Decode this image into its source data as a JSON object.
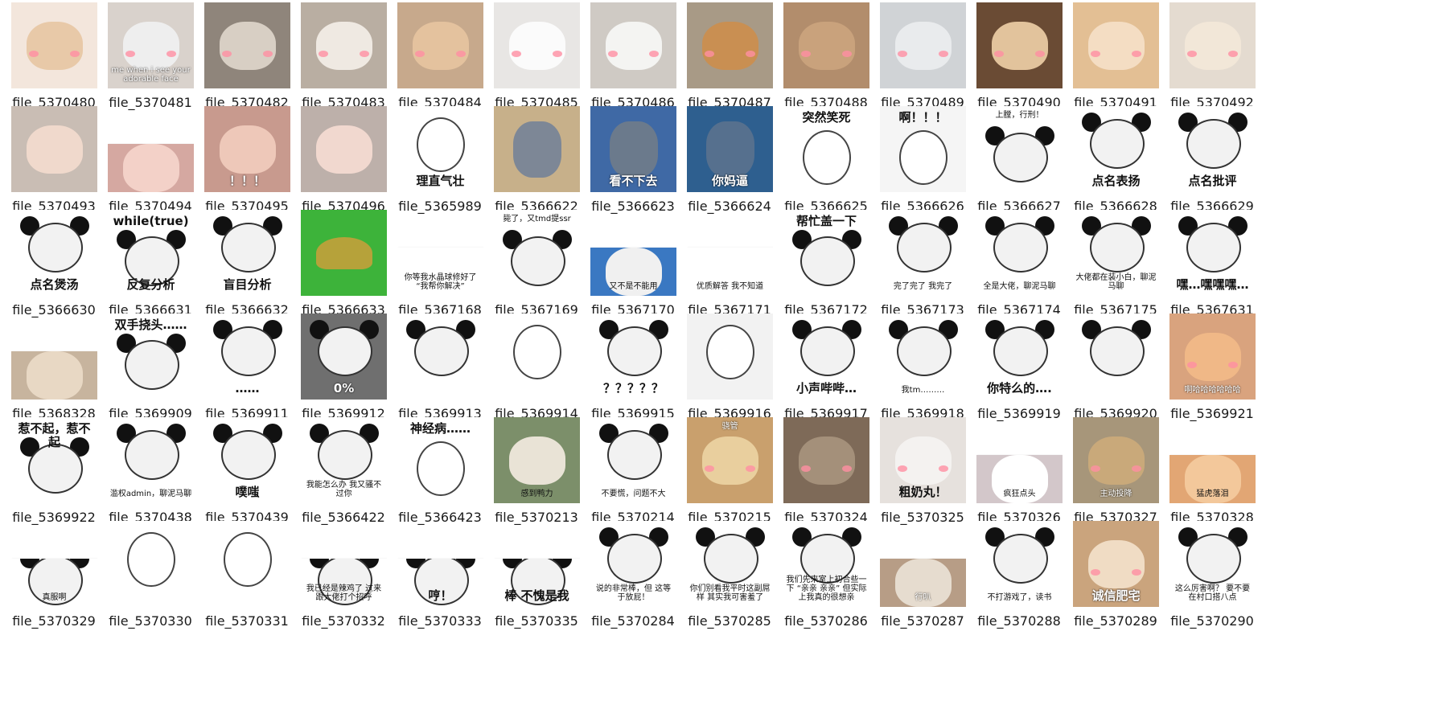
{
  "files": [
    {
      "name": "file_5370480",
      "kind": "cat",
      "bg": "#f3e6dc",
      "fg": "#e8c9a8",
      "caption": ""
    },
    {
      "name": "file_5370481",
      "kind": "cat",
      "bg": "#d9d2cc",
      "fg": "#eeeeee",
      "caption": "me when i see your adorable face",
      "capStyle": "light-small"
    },
    {
      "name": "file_5370482",
      "kind": "cat",
      "bg": "#8f857b",
      "fg": "#d8cfc4",
      "caption": ""
    },
    {
      "name": "file_5370483",
      "kind": "cat",
      "bg": "#b9aea2",
      "fg": "#efe9e2",
      "caption": ""
    },
    {
      "name": "file_5370484",
      "kind": "cat",
      "bg": "#c7a98c",
      "fg": "#e4c29e",
      "caption": ""
    },
    {
      "name": "file_5370485",
      "kind": "cat",
      "bg": "#e8e6e4",
      "fg": "#fbfbfb",
      "caption": ""
    },
    {
      "name": "file_5370486",
      "kind": "cat",
      "bg": "#cfcac4",
      "fg": "#f4f4f2",
      "caption": ""
    },
    {
      "name": "file_5370487",
      "kind": "cat",
      "bg": "#a89a86",
      "fg": "#c98f52",
      "caption": ""
    },
    {
      "name": "file_5370488",
      "kind": "cat",
      "bg": "#b28d6c",
      "fg": "#c9a27c",
      "caption": ""
    },
    {
      "name": "file_5370489",
      "kind": "cat",
      "bg": "#d0d3d6",
      "fg": "#e9ebed",
      "caption": ""
    },
    {
      "name": "file_5370490",
      "kind": "cat",
      "bg": "#6a4b34",
      "fg": "#e2c39c",
      "caption": ""
    },
    {
      "name": "file_5370491",
      "kind": "cat",
      "bg": "#e3bf94",
      "fg": "#f4ddc3",
      "caption": ""
    },
    {
      "name": "file_5370492",
      "kind": "cat",
      "bg": "#e4dbd0",
      "fg": "#f2e7d8",
      "caption": ""
    },
    {
      "name": "file_5370493",
      "kind": "photo",
      "bg": "#c9bdb4",
      "fg": "#f0d9cc",
      "caption": ""
    },
    {
      "name": "file_5370494",
      "kind": "photo",
      "bg": "#d5a8a1",
      "fg": "#f3d1c8",
      "caption": "",
      "short": true
    },
    {
      "name": "file_5370495",
      "kind": "photo",
      "bg": "#c89a8e",
      "fg": "#eec8b9",
      "caption": "！！！",
      "capStyle": "light"
    },
    {
      "name": "file_5370496",
      "kind": "photo",
      "bg": "#bdb0aa",
      "fg": "#f1d8cf",
      "caption": ""
    },
    {
      "name": "file_5365989",
      "kind": "doodle",
      "bg": "#ffffff",
      "fg": "#ffffff",
      "caption": "理直气壮"
    },
    {
      "name": "file_5366622",
      "kind": "cartoon",
      "bg": "#c7b08a",
      "fg": "#7d8796",
      "caption": ""
    },
    {
      "name": "file_5366623",
      "kind": "cartoon",
      "bg": "#3f69a5",
      "fg": "#6b7a8c",
      "caption": "看不下去",
      "capStyle": "light"
    },
    {
      "name": "file_5366624",
      "kind": "cartoon",
      "bg": "#2e5f8f",
      "fg": "#56708e",
      "caption": "你妈逼",
      "capStyle": "light"
    },
    {
      "name": "file_5366625",
      "kind": "doodle",
      "bg": "#ffffff",
      "fg": "#ffffff",
      "caption": "突然笑死",
      "capTop": true
    },
    {
      "name": "file_5366626",
      "kind": "doodle",
      "bg": "#f5f5f5",
      "fg": "#ffffff",
      "caption": "啊！！！",
      "capTop": true
    },
    {
      "name": "file_5366627",
      "kind": "panda",
      "bg": "#ffffff",
      "fg": "#f2f2f2",
      "caption": "上膛，行刑！",
      "capTop": true,
      "capStyle": "small"
    },
    {
      "name": "file_5366628",
      "kind": "panda",
      "bg": "#ffffff",
      "fg": "#f2f2f2",
      "caption": "点名表扬"
    },
    {
      "name": "file_5366629",
      "kind": "panda",
      "bg": "#ffffff",
      "fg": "#f2f2f2",
      "caption": "点名批评"
    },
    {
      "name": "file_5366630",
      "kind": "panda",
      "bg": "#ffffff",
      "fg": "#f2f2f2",
      "caption": "点名煲汤"
    },
    {
      "name": "file_5366631",
      "kind": "panda",
      "bg": "#ffffff",
      "fg": "#f2f2f2",
      "caption": "反复分析",
      "capTop": "while(true)"
    },
    {
      "name": "file_5366632",
      "kind": "panda",
      "bg": "#ffffff",
      "fg": "#f2f2f2",
      "caption": "盲目分析"
    },
    {
      "name": "file_5366633",
      "kind": "plant",
      "bg": "#3db33a",
      "fg": "#b6a23a",
      "caption": ""
    },
    {
      "name": "file_5367168",
      "kind": "text",
      "bg": "#ffffff",
      "fg": "#ffffff",
      "caption": "你等我水晶球修好了 “我帮你解决”",
      "capStyle": "small",
      "short": true
    },
    {
      "name": "file_5367169",
      "kind": "panda",
      "bg": "#ffffff",
      "fg": "#f2f2f2",
      "caption": "毙了，又tmd提ssr",
      "capTop": true,
      "capStyle": "small"
    },
    {
      "name": "file_5367170",
      "kind": "photo",
      "bg": "#3a78c2",
      "fg": "#f0f0f0",
      "caption": "又不是不能用",
      "capStyle": "small",
      "short": true
    },
    {
      "name": "file_5367171",
      "kind": "text",
      "bg": "#ffffff",
      "fg": "#ffffff",
      "caption": "优质解答 我不知道",
      "capStyle": "small",
      "short": true
    },
    {
      "name": "file_5367172",
      "kind": "panda",
      "bg": "#ffffff",
      "fg": "#f2f2f2",
      "caption": "帮忙盖一下",
      "capTop": true
    },
    {
      "name": "file_5367173",
      "kind": "panda",
      "bg": "#ffffff",
      "fg": "#f2f2f2",
      "caption": "完了完了 我完了",
      "capStyle": "small"
    },
    {
      "name": "file_5367174",
      "kind": "panda",
      "bg": "#ffffff",
      "fg": "#f2f2f2",
      "caption": "全是大佬，聊泥马聊",
      "capStyle": "small"
    },
    {
      "name": "file_5367175",
      "kind": "panda",
      "bg": "#ffffff",
      "fg": "#f2f2f2",
      "caption": "大佬都在装小白，聊泥马聊",
      "capStyle": "small"
    },
    {
      "name": "file_5367631",
      "kind": "panda",
      "bg": "#ffffff",
      "fg": "#f2f2f2",
      "caption": "嘿…嘿嘿嘿…"
    },
    {
      "name": "file_5368328",
      "kind": "photo",
      "bg": "#c7b49e",
      "fg": "#e8d8c4",
      "caption": "",
      "short": true
    },
    {
      "name": "file_5369909",
      "kind": "panda",
      "bg": "#ffffff",
      "fg": "#f2f2f2",
      "caption": "双手挠头……",
      "capTop": true
    },
    {
      "name": "file_5369911",
      "kind": "panda",
      "bg": "#ffffff",
      "fg": "#f2f2f2",
      "caption": "……"
    },
    {
      "name": "file_5369912",
      "kind": "panda",
      "bg": "#6f6f6f",
      "fg": "#8a8a8a",
      "caption": "0%",
      "capStyle": "light"
    },
    {
      "name": "file_5369913",
      "kind": "panda",
      "bg": "#ffffff",
      "fg": "#f2f2f2",
      "caption": ""
    },
    {
      "name": "file_5369914",
      "kind": "doodle",
      "bg": "#ffffff",
      "fg": "#ffffff",
      "caption": ""
    },
    {
      "name": "file_5369915",
      "kind": "panda",
      "bg": "#ffffff",
      "fg": "#f2f2f2",
      "caption": "？？？？？"
    },
    {
      "name": "file_5369916",
      "kind": "doodle",
      "bg": "#f2f2f2",
      "fg": "#ffffff",
      "caption": ""
    },
    {
      "name": "file_5369917",
      "kind": "panda",
      "bg": "#ffffff",
      "fg": "#f2f2f2",
      "caption": "小声哔哔…"
    },
    {
      "name": "file_5369918",
      "kind": "panda",
      "bg": "#ffffff",
      "fg": "#f2f2f2",
      "caption": "我tm………",
      "capStyle": "small"
    },
    {
      "name": "file_5369919",
      "kind": "panda",
      "bg": "#ffffff",
      "fg": "#f2f2f2",
      "caption": "你特么的…."
    },
    {
      "name": "file_5369920",
      "kind": "panda",
      "bg": "#ffffff",
      "fg": "#f2f2f2",
      "caption": ""
    },
    {
      "name": "file_5369921",
      "kind": "cat",
      "bg": "#d9a37e",
      "fg": "#f0b887",
      "caption": "啊哈哈哈哈哈哈",
      "capStyle": "light-small"
    },
    {
      "name": "file_5369922",
      "kind": "panda",
      "bg": "#ffffff",
      "fg": "#f2f2f2",
      "caption": "惹不起，惹不起",
      "capTop": true
    },
    {
      "name": "file_5370438",
      "kind": "panda",
      "bg": "#ffffff",
      "fg": "#f2f2f2",
      "caption": "滥权admin，聊泥马聊",
      "capStyle": "small"
    },
    {
      "name": "file_5370439",
      "kind": "panda",
      "bg": "#ffffff",
      "fg": "#f2f2f2",
      "caption": "噗嗤"
    },
    {
      "name": "file_5366422",
      "kind": "panda",
      "bg": "#ffffff",
      "fg": "#f2f2f2",
      "caption": "我能怎么办 我又骚不过你",
      "capStyle": "small"
    },
    {
      "name": "file_5366423",
      "kind": "doodle",
      "bg": "#ffffff",
      "fg": "#ffffff",
      "caption": "神经病……",
      "capTop": true
    },
    {
      "name": "file_5370213",
      "kind": "photo",
      "bg": "#7c8f6a",
      "fg": "#e9e3d6",
      "caption": "感到鸭力",
      "capStyle": "small"
    },
    {
      "name": "file_5370214",
      "kind": "panda",
      "bg": "#ffffff",
      "fg": "#f2f2f2",
      "caption": "不要慌，问题不大",
      "capStyle": "small"
    },
    {
      "name": "file_5370215",
      "kind": "cat",
      "bg": "#c9a06d",
      "fg": "#e9cf9e",
      "caption": "骁管",
      "capTop": true,
      "capStyle": "light-small"
    },
    {
      "name": "file_5370324",
      "kind": "cat",
      "bg": "#7e6a58",
      "fg": "#a4907a",
      "caption": ""
    },
    {
      "name": "file_5370325",
      "kind": "cat",
      "bg": "#e6e1dd",
      "fg": "#f4f2f0",
      "caption": "粗奶丸！"
    },
    {
      "name": "file_5370326",
      "kind": "cat",
      "bg": "#d3c7ca",
      "fg": "#ffffff",
      "caption": "疯狂点头",
      "capStyle": "small",
      "short": true
    },
    {
      "name": "file_5370327",
      "kind": "cat",
      "bg": "#a7967a",
      "fg": "#c9a97a",
      "caption": "主动投降",
      "capStyle": "light-small"
    },
    {
      "name": "file_5370328",
      "kind": "cat",
      "bg": "#e2a674",
      "fg": "#f3c89b",
      "caption": "猛虎落泪",
      "capStyle": "small",
      "short": true
    },
    {
      "name": "file_5370329",
      "kind": "panda",
      "bg": "#ffffff",
      "fg": "#f2f2f2",
      "caption": "真服啊",
      "capStyle": "small",
      "short": true
    },
    {
      "name": "file_5370330",
      "kind": "doodle",
      "bg": "#ffffff",
      "fg": "#ffffff",
      "caption": ""
    },
    {
      "name": "file_5370331",
      "kind": "doodle",
      "bg": "#ffffff",
      "fg": "#ffffff",
      "caption": ""
    },
    {
      "name": "file_5370332",
      "kind": "panda",
      "bg": "#ffffff",
      "fg": "#f2f2f2",
      "caption": "我已经是辣鸡了 过来跟大佬打个招呼",
      "capStyle": "small",
      "short": true
    },
    {
      "name": "file_5370333",
      "kind": "panda",
      "bg": "#ffffff",
      "fg": "#f2f2f2",
      "caption": "哼！",
      "short": true
    },
    {
      "name": "file_5370335",
      "kind": "panda",
      "bg": "#ffffff",
      "fg": "#f2f2f2",
      "caption": "棒 不愧是我",
      "short": true
    },
    {
      "name": "file_5370284",
      "kind": "panda",
      "bg": "#ffffff",
      "fg": "#f2f2f2",
      "caption": "说的非常棒，但 这等于放屁！",
      "capStyle": "small"
    },
    {
      "name": "file_5370285",
      "kind": "panda",
      "bg": "#ffffff",
      "fg": "#f2f2f2",
      "caption": "你们别看我平时这副屌样 其实我可害羞了",
      "capStyle": "small"
    },
    {
      "name": "file_5370286",
      "kind": "panda",
      "bg": "#ffffff",
      "fg": "#f2f2f2",
      "caption": "我们先来室上初合些一下 “亲亲 亲亲” 但实际上我真的很想亲",
      "capStyle": "small"
    },
    {
      "name": "file_5370287",
      "kind": "cat",
      "bg": "#b79d86",
      "fg": "#e6dccf",
      "caption": "行叭",
      "capStyle": "light-small",
      "short": true
    },
    {
      "name": "file_5370288",
      "kind": "panda",
      "bg": "#ffffff",
      "fg": "#f2f2f2",
      "caption": "不打游戏了，读书",
      "capStyle": "small"
    },
    {
      "name": "file_5370289",
      "kind": "cat",
      "bg": "#caa47d",
      "fg": "#f0dcc4",
      "caption": "诚信肥宅",
      "capStyle": "light"
    },
    {
      "name": "file_5370290",
      "kind": "panda",
      "bg": "#ffffff",
      "fg": "#f2f2f2",
      "caption": "这么厉害啊？ 要不要在村口搭八点",
      "capStyle": "small"
    }
  ]
}
